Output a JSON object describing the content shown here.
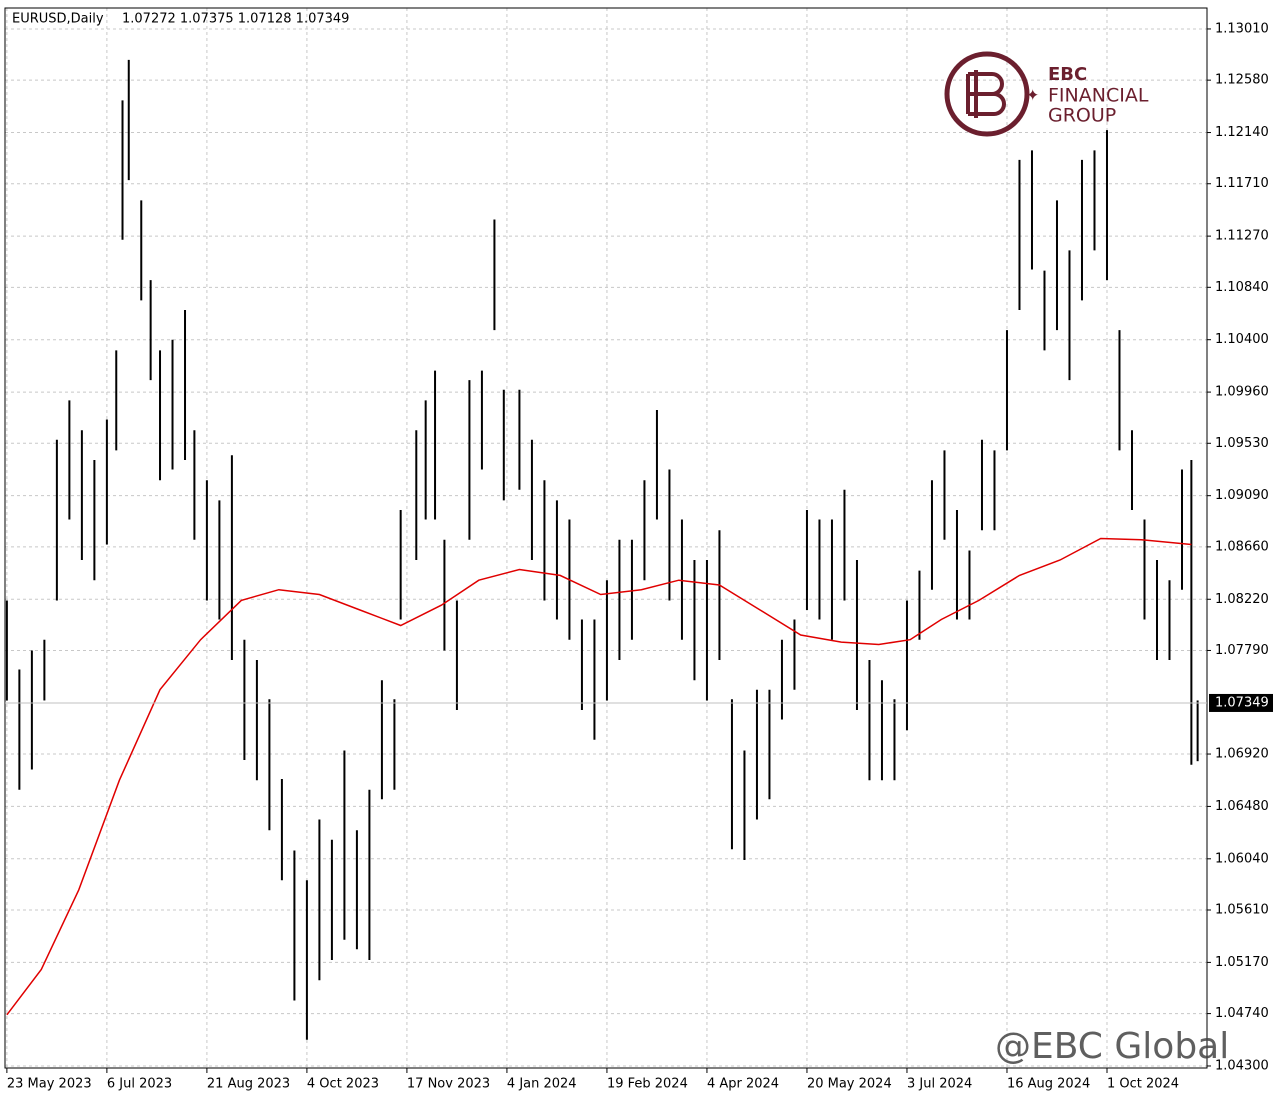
{
  "chart_data": {
    "type": "ohlc",
    "title": "EURUSD,Daily",
    "subtitle": "1.07272 1.07375 1.07128 1.07349",
    "color": "#000000",
    "grid": true,
    "xlim": [
      -0.6,
      384
    ],
    "ylim": [
      1.04283,
      1.13186
    ],
    "xticks": [
      {
        "value": 0,
        "label": "23 May 2023"
      },
      {
        "value": 32,
        "label": "6 Jul 2023"
      },
      {
        "value": 64,
        "label": "21 Aug 2023"
      },
      {
        "value": 96,
        "label": "4 Oct 2023"
      },
      {
        "value": 128,
        "label": "17 Nov 2023"
      },
      {
        "value": 160,
        "label": "4 Jan 2024"
      },
      {
        "value": 192,
        "label": "19 Feb 2024"
      },
      {
        "value": 224,
        "label": "4 Apr 2024"
      },
      {
        "value": 256,
        "label": "20 May 2024"
      },
      {
        "value": 288,
        "label": "3 Jul 2024"
      },
      {
        "value": 320,
        "label": "16 Aug 2024"
      },
      {
        "value": 352,
        "label": "1 Oct 2024"
      }
    ],
    "yticks": [
      {
        "value": 1.1301,
        "label": "1.13010"
      },
      {
        "value": 1.1258,
        "label": "1.12580"
      },
      {
        "value": 1.1214,
        "label": "1.12140"
      },
      {
        "value": 1.1171,
        "label": "1.11710"
      },
      {
        "value": 1.1127,
        "label": "1.11270"
      },
      {
        "value": 1.1084,
        "label": "1.10840"
      },
      {
        "value": 1.104,
        "label": "1.10400"
      },
      {
        "value": 1.0996,
        "label": "1.09960"
      },
      {
        "value": 1.0953,
        "label": "1.09530"
      },
      {
        "value": 1.0909,
        "label": "1.09090"
      },
      {
        "value": 1.0866,
        "label": "1.08660"
      },
      {
        "value": 1.0822,
        "label": "1.08220"
      },
      {
        "value": 1.0779,
        "label": "1.07790"
      },
      {
        "value": 1.0692,
        "label": "1.06920"
      },
      {
        "value": 1.0648,
        "label": "1.06480"
      },
      {
        "value": 1.0604,
        "label": "1.06040"
      },
      {
        "value": 1.0561,
        "label": "1.05610"
      },
      {
        "value": 1.0517,
        "label": "1.05170"
      },
      {
        "value": 1.0474,
        "label": "1.04740"
      },
      {
        "value": 1.043,
        "label": "1.04300"
      }
    ],
    "last_price": {
      "value": 1.07349,
      "label": "1.07349"
    },
    "x": [
      0,
      4,
      8,
      12,
      16,
      20,
      24,
      28,
      32,
      35,
      37,
      39,
      43,
      46,
      49,
      53,
      57,
      60,
      64,
      68,
      72,
      76,
      80,
      84,
      88,
      92,
      96,
      100,
      104,
      108,
      112,
      116,
      120,
      124,
      126,
      131,
      134,
      137,
      140,
      144,
      148,
      152,
      156,
      159,
      164,
      168,
      172,
      176,
      180,
      184,
      188,
      192,
      196,
      200,
      204,
      208,
      212,
      216,
      220,
      224,
      228,
      232,
      236,
      240,
      244,
      248,
      252,
      256,
      260,
      264,
      268,
      272,
      276,
      280,
      284,
      288,
      292,
      296,
      300,
      304,
      308,
      312,
      316,
      320,
      324,
      328,
      332,
      336,
      340,
      344,
      348,
      352,
      356,
      360,
      364,
      368,
      372,
      376,
      379,
      381
    ],
    "high": [
      1.0821,
      1.0763,
      1.0779,
      1.0788,
      1.0956,
      1.0989,
      1.0964,
      1.0939,
      1.0973,
      1.1031,
      1.1241,
      1.1275,
      1.1157,
      1.109,
      1.1031,
      1.104,
      1.1065,
      1.0964,
      1.0922,
      1.0905,
      1.0943,
      1.0788,
      1.0771,
      1.0738,
      1.0671,
      1.0611,
      1.0586,
      1.0637,
      1.062,
      1.0695,
      1.0628,
      1.0662,
      1.0754,
      1.0738,
      1.0897,
      1.0964,
      1.0989,
      1.1014,
      1.0872,
      1.0821,
      1.1006,
      1.1014,
      1.1141,
      1.0998,
      1.0998,
      1.0956,
      1.0922,
      1.0905,
      1.0889,
      1.0805,
      1.0805,
      1.0838,
      1.0872,
      1.0872,
      1.0922,
      1.0981,
      1.0931,
      1.0889,
      1.0855,
      1.0855,
      1.088,
      1.0738,
      1.0695,
      1.0746,
      1.0746,
      1.0788,
      1.0805,
      1.0897,
      1.0889,
      1.0889,
      1.0914,
      1.0855,
      1.0771,
      1.0754,
      1.0738,
      1.0821,
      1.0846,
      1.0922,
      1.0947,
      1.0897,
      1.0863,
      1.0956,
      1.0947,
      1.1048,
      1.1191,
      1.1199,
      1.1098,
      1.1157,
      1.1115,
      1.1191,
      1.1199,
      1.1216,
      1.1048,
      1.0964,
      1.0889,
      1.0855,
      1.0838,
      1.0931,
      1.0939,
      1.0737
    ],
    "low": [
      1.0737,
      1.0662,
      1.0679,
      1.0737,
      1.0821,
      1.0889,
      1.0855,
      1.0838,
      1.0868,
      1.0947,
      1.1124,
      1.1174,
      1.1073,
      1.1006,
      1.0922,
      1.0931,
      1.0939,
      1.0872,
      1.0821,
      1.0805,
      1.0771,
      1.0687,
      1.067,
      1.0628,
      1.0586,
      1.0485,
      1.0452,
      1.0502,
      1.0519,
      1.0536,
      1.0528,
      1.0519,
      1.0654,
      1.0662,
      1.0805,
      1.0855,
      1.0889,
      1.0889,
      1.0779,
      1.0729,
      1.0872,
      1.0931,
      1.1048,
      1.0905,
      1.0914,
      1.0855,
      1.0821,
      1.0805,
      1.0788,
      1.0729,
      1.0704,
      1.0737,
      1.0771,
      1.0788,
      1.0838,
      1.0889,
      1.0821,
      1.0788,
      1.0754,
      1.0737,
      1.0771,
      1.0612,
      1.0603,
      1.0637,
      1.0654,
      1.0721,
      1.0746,
      1.0813,
      1.0805,
      1.0788,
      1.0821,
      1.0729,
      1.067,
      1.067,
      1.067,
      1.0712,
      1.0788,
      1.083,
      1.0872,
      1.0805,
      1.0805,
      1.088,
      1.088,
      1.0947,
      1.1065,
      1.1099,
      1.1031,
      1.1048,
      1.1006,
      1.1073,
      1.1115,
      1.109,
      1.0947,
      1.0897,
      1.0805,
      1.0771,
      1.0771,
      1.083,
      1.0683,
      1.0686
    ],
    "ma": {
      "color": "#e00000",
      "x": [
        0,
        11,
        23,
        36,
        49,
        62,
        75,
        87,
        100,
        113,
        126,
        139,
        151,
        164,
        177,
        190,
        203,
        215,
        228,
        241,
        254,
        267,
        279,
        289,
        299,
        311,
        324,
        337,
        350,
        363,
        379
      ],
      "values": [
        1.0473,
        1.0511,
        1.0578,
        1.067,
        1.0746,
        1.0788,
        1.0821,
        1.083,
        1.0826,
        1.0813,
        1.08,
        1.0817,
        1.0838,
        1.0847,
        1.0842,
        1.0826,
        1.083,
        1.0838,
        1.0834,
        1.0813,
        1.0792,
        1.0786,
        1.0784,
        1.0788,
        1.0805,
        1.0821,
        1.0842,
        1.0855,
        1.0873,
        1.0872,
        1.0868
      ]
    }
  },
  "logo": {
    "line1": "EBC",
    "line2": "FINANCIAL",
    "line3": "GROUP"
  },
  "watermark": "@EBC Global"
}
